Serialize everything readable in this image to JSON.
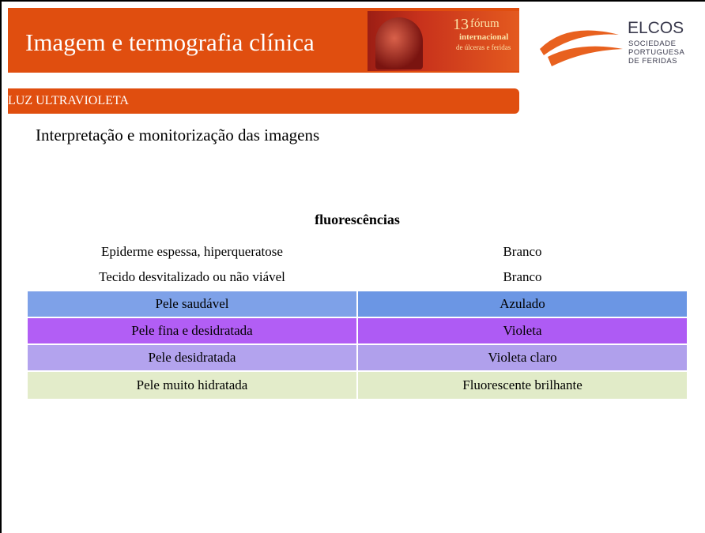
{
  "header": {
    "title": "Imagem e termografia clínica",
    "banner": {
      "number": "13",
      "line1": "fórum",
      "line2": "internacional",
      "line3": "de úlceras e feridas"
    },
    "logo": {
      "name": "ELCOS",
      "line1": "SOCIEDADE",
      "line2": "PORTUGUESA",
      "line3": "DE FERIDAS"
    }
  },
  "section": {
    "title": "LUZ ULTRAVIOLETA"
  },
  "subtitle": "Interpretação e monitorização das imagens",
  "table": {
    "header": "fluorescências",
    "rows": [
      [
        "Epiderme espessa, hiperqueratose",
        "Branco"
      ],
      [
        "Tecido desvitalizado ou não viável",
        "Branco"
      ],
      [
        "Pele saudável",
        "Azulado"
      ],
      [
        "Pele fina e desidratada",
        "Violeta"
      ],
      [
        "Pele desidratada",
        "Violeta claro"
      ],
      [
        "Pele muito hidratada",
        "Fluorescente brilhante"
      ]
    ]
  }
}
